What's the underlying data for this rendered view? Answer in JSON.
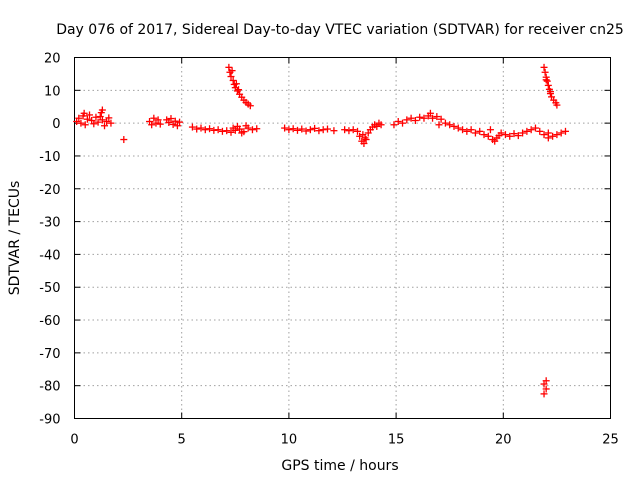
{
  "chart_data": {
    "type": "scatter",
    "title": "Day 076 of 2017, Sidereal Day-to-day VTEC variation (SDTVAR) for receiver cn25",
    "xlabel": "GPS time / hours",
    "ylabel": "SDTVAR / TECUs",
    "xlim": [
      0,
      25
    ],
    "ylim": [
      -90,
      20
    ],
    "xticks": [
      0,
      5,
      10,
      15,
      20,
      25
    ],
    "yticks": [
      20,
      10,
      0,
      -10,
      -20,
      -30,
      -40,
      -50,
      -60,
      -70,
      -80,
      -90
    ],
    "grid": true,
    "marker": "+",
    "series_color": "#ff0000",
    "series": [
      {
        "name": "cn25",
        "points": [
          [
            0.1,
            0.5
          ],
          [
            0.2,
            1.5
          ],
          [
            0.3,
            0.0
          ],
          [
            0.4,
            2.2
          ],
          [
            0.5,
            -0.5
          ],
          [
            0.6,
            1.2
          ],
          [
            0.7,
            2.5
          ],
          [
            0.8,
            0.8
          ],
          [
            0.9,
            -0.2
          ],
          [
            1.0,
            1.8
          ],
          [
            1.1,
            0.3
          ],
          [
            1.2,
            2.0
          ],
          [
            1.3,
            1.0
          ],
          [
            1.4,
            -0.8
          ],
          [
            1.5,
            0.5
          ],
          [
            1.6,
            1.6
          ],
          [
            1.7,
            0.0
          ],
          [
            1.25,
            3.2
          ],
          [
            1.3,
            4.0
          ],
          [
            0.45,
            3.0
          ],
          [
            2.3,
            -5.0
          ],
          [
            3.5,
            0.5
          ],
          [
            3.6,
            -0.5
          ],
          [
            3.7,
            1.5
          ],
          [
            3.8,
            0.0
          ],
          [
            3.9,
            1.0
          ],
          [
            4.0,
            -0.3
          ],
          [
            4.3,
            1.0
          ],
          [
            4.4,
            0.2
          ],
          [
            4.5,
            1.4
          ],
          [
            4.6,
            -0.4
          ],
          [
            4.7,
            0.6
          ],
          [
            4.8,
            -0.8
          ],
          [
            4.9,
            0.3
          ],
          [
            5.5,
            -1.2
          ],
          [
            5.7,
            -1.8
          ],
          [
            5.9,
            -1.5
          ],
          [
            6.1,
            -2.0
          ],
          [
            6.3,
            -1.7
          ],
          [
            6.5,
            -2.2
          ],
          [
            6.7,
            -2.0
          ],
          [
            6.9,
            -2.5
          ],
          [
            7.1,
            -2.3
          ],
          [
            7.3,
            -2.8
          ],
          [
            7.5,
            -2.2
          ],
          [
            7.7,
            -1.8
          ],
          [
            7.9,
            -2.6
          ],
          [
            8.1,
            -1.5
          ],
          [
            8.3,
            -2.0
          ],
          [
            8.5,
            -1.7
          ],
          [
            7.6,
            -1.0
          ],
          [
            7.8,
            -3.0
          ],
          [
            8.0,
            -0.8
          ],
          [
            7.4,
            -1.5
          ],
          [
            7.2,
            17
          ],
          [
            7.25,
            15.5
          ],
          [
            7.3,
            14.2
          ],
          [
            7.4,
            13.0
          ],
          [
            7.45,
            11.8
          ],
          [
            7.5,
            10.8
          ],
          [
            7.6,
            9.8
          ],
          [
            7.7,
            8.8
          ],
          [
            7.8,
            7.9
          ],
          [
            7.9,
            7.0
          ],
          [
            8.0,
            6.3
          ],
          [
            8.1,
            5.8
          ],
          [
            8.2,
            5.3
          ],
          [
            7.35,
            16.0
          ],
          [
            7.55,
            12.0
          ],
          [
            7.65,
            10.2
          ],
          [
            9.8,
            -1.5
          ],
          [
            10.0,
            -2.0
          ],
          [
            10.2,
            -1.7
          ],
          [
            10.4,
            -2.2
          ],
          [
            10.6,
            -1.8
          ],
          [
            10.8,
            -2.4
          ],
          [
            11.0,
            -2.0
          ],
          [
            11.2,
            -1.6
          ],
          [
            11.4,
            -2.3
          ],
          [
            11.6,
            -2.0
          ],
          [
            11.8,
            -1.8
          ],
          [
            12.1,
            -2.3
          ],
          [
            12.6,
            -2.0
          ],
          [
            12.8,
            -2.3
          ],
          [
            13.0,
            -2.0
          ],
          [
            13.2,
            -2.5
          ],
          [
            13.3,
            -4.0
          ],
          [
            13.4,
            -5.5
          ],
          [
            13.5,
            -6.2
          ],
          [
            13.6,
            -5.0
          ],
          [
            13.7,
            -3.0
          ],
          [
            13.8,
            -2.0
          ],
          [
            13.9,
            -1.2
          ],
          [
            14.0,
            -0.5
          ],
          [
            14.1,
            -1.0
          ],
          [
            14.2,
            0.0
          ],
          [
            14.3,
            -0.5
          ],
          [
            13.45,
            -3.5
          ],
          [
            13.55,
            -4.5
          ],
          [
            14.9,
            -0.5
          ],
          [
            15.1,
            0.5
          ],
          [
            15.3,
            0.0
          ],
          [
            15.5,
            1.0
          ],
          [
            15.7,
            1.5
          ],
          [
            15.9,
            0.8
          ],
          [
            16.1,
            1.8
          ],
          [
            16.3,
            1.5
          ],
          [
            16.5,
            2.2
          ],
          [
            16.7,
            1.5
          ],
          [
            16.9,
            2.0
          ],
          [
            17.1,
            1.2
          ],
          [
            17.3,
            0.0
          ],
          [
            17.5,
            -0.5
          ],
          [
            17.7,
            -1.0
          ],
          [
            17.9,
            -1.5
          ],
          [
            18.1,
            -2.0
          ],
          [
            18.3,
            -2.5
          ],
          [
            18.5,
            -2.0
          ],
          [
            18.7,
            -3.0
          ],
          [
            18.9,
            -2.5
          ],
          [
            19.1,
            -3.5
          ],
          [
            19.3,
            -4.0
          ],
          [
            19.5,
            -5.0
          ],
          [
            19.7,
            -4.5
          ],
          [
            19.9,
            -3.0
          ],
          [
            19.4,
            -2.0
          ],
          [
            19.6,
            -5.5
          ],
          [
            19.8,
            -3.8
          ],
          [
            16.6,
            3.0
          ],
          [
            17.0,
            -0.5
          ],
          [
            20.1,
            -3.5
          ],
          [
            20.3,
            -4.0
          ],
          [
            20.5,
            -3.2
          ],
          [
            20.7,
            -3.8
          ],
          [
            20.9,
            -3.0
          ],
          [
            21.1,
            -2.5
          ],
          [
            21.3,
            -2.0
          ],
          [
            21.5,
            -1.5
          ],
          [
            21.7,
            -2.5
          ],
          [
            21.9,
            -3.5
          ],
          [
            22.1,
            -4.5
          ],
          [
            22.3,
            -4.0
          ],
          [
            22.5,
            -3.5
          ],
          [
            22.7,
            -3.0
          ],
          [
            22.9,
            -2.5
          ],
          [
            22.1,
            -3.0
          ],
          [
            21.9,
            17
          ],
          [
            21.95,
            15.5
          ],
          [
            22.0,
            14.0
          ],
          [
            22.05,
            12.8
          ],
          [
            22.1,
            11.5
          ],
          [
            22.15,
            10.3
          ],
          [
            22.2,
            9.0
          ],
          [
            22.25,
            8.0
          ],
          [
            22.35,
            7.0
          ],
          [
            22.45,
            6.2
          ],
          [
            22.5,
            5.5
          ],
          [
            22.0,
            13.2
          ],
          [
            22.2,
            9.6
          ],
          [
            22.0,
            -78.5
          ],
          [
            21.9,
            -79.5
          ],
          [
            22.0,
            -81.0
          ],
          [
            21.9,
            -82.5
          ]
        ]
      }
    ]
  }
}
